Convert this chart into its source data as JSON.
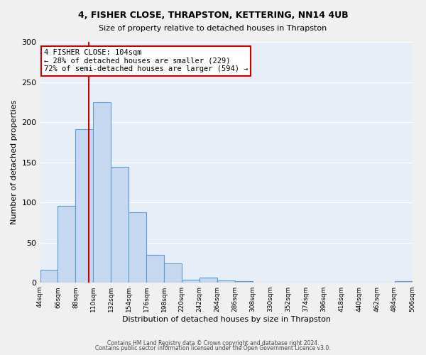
{
  "title": "4, FISHER CLOSE, THRAPSTON, KETTERING, NN14 4UB",
  "subtitle": "Size of property relative to detached houses in Thrapston",
  "xlabel": "Distribution of detached houses by size in Thrapston",
  "ylabel": "Number of detached properties",
  "bar_color": "#c5d8f0",
  "bar_edge_color": "#5b9bd5",
  "bg_color": "#e8eef7",
  "grid_color": "#ffffff",
  "annotation_box_color": "#cc0000",
  "annotation_line_color": "#cc0000",
  "annotation_title": "4 FISHER CLOSE: 104sqm",
  "annotation_line1": "← 28% of detached houses are smaller (229)",
  "annotation_line2": "72% of semi-detached houses are larger (594) →",
  "property_size": 104,
  "bin_edges": [
    44,
    66,
    88,
    110,
    132,
    154,
    176,
    198,
    220,
    242,
    264,
    286,
    308,
    330,
    352,
    374,
    396,
    418,
    440,
    462,
    484,
    506
  ],
  "bin_counts": [
    16,
    96,
    191,
    225,
    144,
    88,
    35,
    24,
    4,
    6,
    3,
    2,
    0,
    0,
    0,
    0,
    0,
    0,
    0,
    0,
    2
  ],
  "ylim": [
    0,
    300
  ],
  "yticks": [
    0,
    50,
    100,
    150,
    200,
    250,
    300
  ],
  "footer1": "Contains HM Land Registry data © Crown copyright and database right 2024.",
  "footer2": "Contains public sector information licensed under the Open Government Licence v3.0."
}
